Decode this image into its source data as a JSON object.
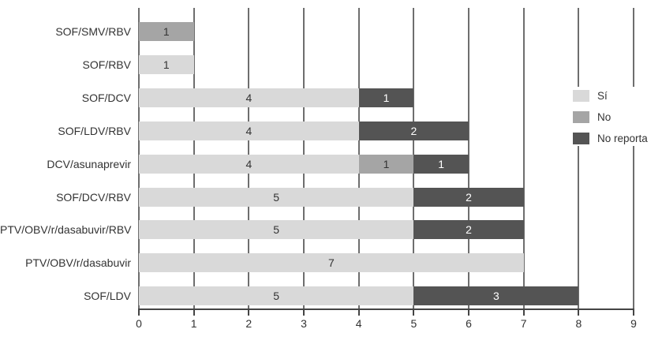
{
  "chart_data": {
    "type": "bar",
    "orientation": "horizontal",
    "title": "",
    "xlabel": "",
    "ylabel": "",
    "categories": [
      "SOF/SMV/RBV",
      "SOF/RBV",
      "SOF/DCV",
      "SOF/LDV/RBV",
      "DCV/asunaprevir",
      "SOF/DCV/RBV",
      "PTV/OBV/r/dasabuvir/RBV",
      "PTV/OBV/r/dasabuvir",
      "SOF/LDV"
    ],
    "series": [
      {
        "name": "Sí",
        "color": "#d9d9d9",
        "value_text_color": "#333333",
        "values": [
          0,
          1,
          4,
          4,
          4,
          5,
          5,
          7,
          5
        ]
      },
      {
        "name": "No",
        "color": "#a5a5a5",
        "value_text_color": "#333333",
        "values": [
          1,
          0,
          0,
          0,
          1,
          0,
          0,
          0,
          0
        ]
      },
      {
        "name": "No reporta",
        "color": "#545454",
        "value_text_color": "#ffffff",
        "values": [
          0,
          0,
          1,
          2,
          1,
          2,
          2,
          0,
          3
        ]
      }
    ],
    "xlim": [
      0,
      9
    ],
    "xticks": [
      "0",
      "1",
      "2",
      "3",
      "4",
      "5",
      "6",
      "7",
      "8",
      "9"
    ],
    "grid": "vertical",
    "legend_position": "right",
    "colors": {
      "gridline": "#6e6e6e",
      "axis": "#444444",
      "text": "#333333",
      "background": "#ffffff"
    }
  }
}
